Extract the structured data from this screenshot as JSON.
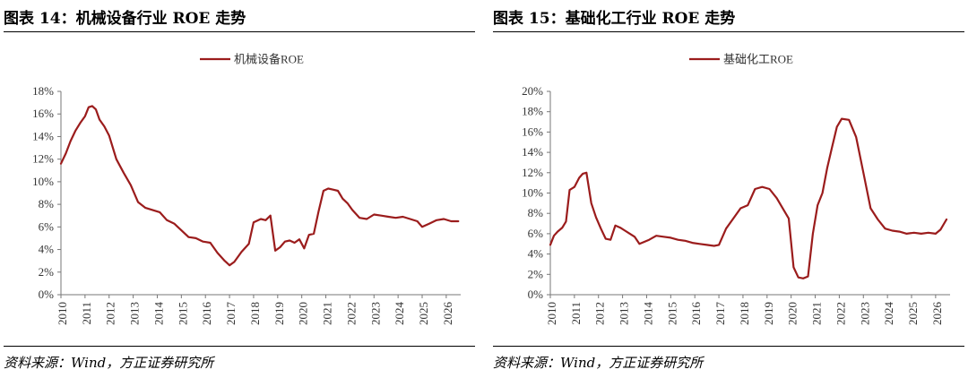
{
  "panels": [
    {
      "title": "图表 14：机械设备行业 ROE 走势",
      "source": "资料来源：Wind，方正证券研究所"
    },
    {
      "title": "图表 15：基础化工行业 ROE 走势",
      "source": "资料来源：Wind，方正证券研究所"
    }
  ],
  "chart_data": [
    {
      "type": "line",
      "color": "#9b1c1c",
      "series": [
        {
          "name": "机械设备ROE",
          "x": [
            2010.0,
            2010.2,
            2010.4,
            2010.6,
            2010.8,
            2011.0,
            2011.15,
            2011.3,
            2011.45,
            2011.6,
            2011.8,
            2012.0,
            2012.3,
            2012.6,
            2012.9,
            2013.2,
            2013.5,
            2013.8,
            2014.1,
            2014.4,
            2014.7,
            2015.0,
            2015.3,
            2015.6,
            2015.9,
            2016.2,
            2016.5,
            2016.8,
            2017.0,
            2017.2,
            2017.5,
            2017.8,
            2018.0,
            2018.3,
            2018.5,
            2018.7,
            2018.9,
            2019.1,
            2019.3,
            2019.5,
            2019.7,
            2019.9,
            2020.1,
            2020.3,
            2020.5,
            2020.7,
            2020.9,
            2021.1,
            2021.3,
            2021.5,
            2021.7,
            2021.9,
            2022.1,
            2022.4,
            2022.7,
            2023.0,
            2023.3,
            2023.6,
            2023.9,
            2024.2,
            2024.5,
            2024.8,
            2025.0,
            2025.3,
            2025.6,
            2025.9,
            2026.2,
            2026.5
          ],
          "values": [
            11.6,
            12.5,
            13.6,
            14.5,
            15.2,
            15.8,
            16.6,
            16.7,
            16.4,
            15.5,
            14.9,
            14.1,
            12.0,
            10.8,
            9.7,
            8.2,
            7.7,
            7.5,
            7.3,
            6.6,
            6.3,
            5.7,
            5.1,
            5.0,
            4.7,
            4.6,
            3.7,
            3.0,
            2.6,
            2.9,
            3.8,
            4.5,
            6.4,
            6.7,
            6.6,
            7.0,
            3.9,
            4.2,
            4.7,
            4.8,
            4.6,
            4.9,
            4.1,
            5.3,
            5.4,
            7.4,
            9.2,
            9.4,
            9.3,
            9.2,
            8.5,
            8.1,
            7.5,
            6.8,
            6.7,
            7.1,
            7.0,
            6.9,
            6.8,
            6.9,
            6.7,
            6.5,
            6.0,
            6.3,
            6.6,
            6.7,
            6.5,
            6.5
          ]
        }
      ],
      "xticks": [
        "2010",
        "2011",
        "2012",
        "2013",
        "2014",
        "2015",
        "2016",
        "2017",
        "2018",
        "2019",
        "2020",
        "2021",
        "2022",
        "2023",
        "2024",
        "2025",
        "2026"
      ],
      "yticks": [
        "0%",
        "2%",
        "4%",
        "6%",
        "8%",
        "10%",
        "12%",
        "14%",
        "16%",
        "18%"
      ],
      "xlim": [
        2010,
        2026.6
      ],
      "ylim": [
        0,
        18
      ],
      "legend": "top-center",
      "grid": false
    },
    {
      "type": "line",
      "color": "#9b1c1c",
      "series": [
        {
          "name": "基础化工ROE",
          "x": [
            2010.0,
            2010.15,
            2010.3,
            2010.5,
            2010.65,
            2010.8,
            2011.0,
            2011.2,
            2011.35,
            2011.5,
            2011.7,
            2011.9,
            2012.1,
            2012.3,
            2012.5,
            2012.7,
            2012.9,
            2013.1,
            2013.3,
            2013.5,
            2013.7,
            2013.9,
            2014.1,
            2014.4,
            2014.7,
            2015.0,
            2015.3,
            2015.6,
            2015.9,
            2016.2,
            2016.5,
            2016.8,
            2017.0,
            2017.3,
            2017.6,
            2017.9,
            2018.2,
            2018.5,
            2018.8,
            2019.1,
            2019.4,
            2019.7,
            2019.9,
            2020.1,
            2020.3,
            2020.5,
            2020.7,
            2020.9,
            2021.1,
            2021.3,
            2021.5,
            2021.7,
            2021.9,
            2022.1,
            2022.4,
            2022.7,
            2023.0,
            2023.3,
            2023.6,
            2023.9,
            2024.2,
            2024.5,
            2024.8,
            2025.1,
            2025.4,
            2025.7,
            2026.0,
            2026.2,
            2026.45
          ],
          "values": [
            4.9,
            5.8,
            6.2,
            6.6,
            7.2,
            10.3,
            10.6,
            11.5,
            11.9,
            12.0,
            9.0,
            7.6,
            6.5,
            5.5,
            5.4,
            6.8,
            6.6,
            6.3,
            6.0,
            5.7,
            5.0,
            5.2,
            5.4,
            5.8,
            5.7,
            5.6,
            5.4,
            5.3,
            5.1,
            5.0,
            4.9,
            4.8,
            4.9,
            6.5,
            7.5,
            8.5,
            8.8,
            10.4,
            10.6,
            10.4,
            9.5,
            8.3,
            7.5,
            2.7,
            1.7,
            1.6,
            1.8,
            6.0,
            8.8,
            10.0,
            12.5,
            14.5,
            16.5,
            17.3,
            17.2,
            15.5,
            12.0,
            8.5,
            7.4,
            6.5,
            6.3,
            6.2,
            6.0,
            6.1,
            6.0,
            6.1,
            6.0,
            6.4,
            7.4
          ]
        }
      ],
      "xticks": [
        "2010",
        "2011",
        "2012",
        "2013",
        "2014",
        "2015",
        "2016",
        "2017",
        "2018",
        "2019",
        "2020",
        "2021",
        "2022",
        "2023",
        "2024",
        "2025",
        "2026"
      ],
      "yticks": [
        "0%",
        "2%",
        "4%",
        "6%",
        "8%",
        "10%",
        "12%",
        "14%",
        "16%",
        "18%",
        "20%"
      ],
      "xlim": [
        2010,
        2026.6
      ],
      "ylim": [
        0,
        20
      ],
      "legend": "top-center",
      "grid": false
    }
  ]
}
